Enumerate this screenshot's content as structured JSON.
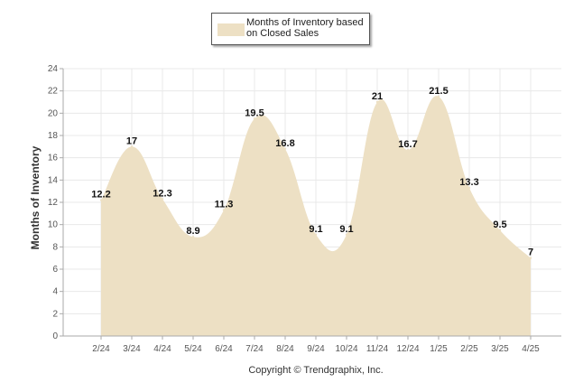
{
  "chart_data": {
    "type": "area",
    "categories": [
      "2/24",
      "3/24",
      "4/24",
      "5/24",
      "6/24",
      "7/24",
      "8/24",
      "9/24",
      "10/24",
      "11/24",
      "12/24",
      "1/25",
      "2/25",
      "3/25",
      "4/25"
    ],
    "series": [
      {
        "name": "Months of Inventory based on Closed Sales",
        "values": [
          12.2,
          17,
          12.3,
          8.9,
          11.3,
          19.5,
          16.8,
          9.1,
          9.1,
          21,
          16.7,
          21.5,
          13.3,
          9.5,
          7
        ],
        "data_labels": [
          "12.2",
          "17",
          "12.3",
          "8.9",
          "11.3",
          "19.5",
          "16.8",
          "9.1",
          "9.1",
          "21",
          "16.7",
          "21.5",
          "13.3",
          "9.5",
          "7"
        ]
      }
    ],
    "xlabel": "",
    "ylabel": "Months of Inventory",
    "ylim": [
      0,
      24
    ],
    "yticks": [
      "0",
      "2",
      "4",
      "6",
      "8",
      "10",
      "12",
      "14",
      "16",
      "18",
      "20",
      "22",
      "24"
    ],
    "grid": true,
    "legend_position": "top-center",
    "colors": {
      "area_fill": "#ede0c4",
      "grid": "#e8e8e8",
      "axis": "#aaaaaa"
    }
  },
  "footer": {
    "copyright": "Copyright © Trendgraphix, Inc."
  }
}
